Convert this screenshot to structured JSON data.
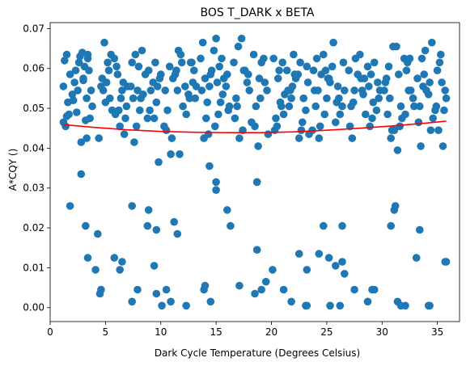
{
  "chart_data": {
    "type": "scatter",
    "title": "BOS T_DARK x BETA",
    "xlabel": "Dark Cycle Temperature (Degrees Celsius)",
    "ylabel": "A*CQY ()",
    "xlim": [
      0,
      37
    ],
    "ylim": [
      -0.0035,
      0.0715
    ],
    "x_ticks": [
      0,
      5,
      10,
      15,
      20,
      25,
      30,
      35
    ],
    "y_ticks": [
      0.0,
      0.01,
      0.02,
      0.03,
      0.04,
      0.05,
      0.06,
      0.07
    ],
    "y_tick_labels": [
      "0.00",
      "0.01",
      "0.02",
      "0.03",
      "0.04",
      "0.05",
      "0.06",
      "0.07"
    ],
    "grid": false,
    "colors": {
      "points": "#1f77b4",
      "fit": "#ff0000"
    },
    "series": [
      {
        "type": "scatter",
        "x": [
          1.2,
          1.5,
          2.1,
          2.6,
          3.0,
          3.4,
          3.7,
          1.3,
          1.8,
          2.4,
          2.9,
          3.3,
          1.4,
          2.2,
          3.1,
          3.6,
          1.6,
          2.7,
          3.5,
          1.2,
          2.0,
          3.0,
          3.4,
          1.5,
          2.5,
          3.8,
          2.3,
          3.2,
          2.8,
          1.7,
          4.6,
          5.2,
          5.6,
          6.1,
          6.5,
          4.9,
          5.4,
          6.0,
          6.8,
          4.7,
          5.8,
          6.3,
          5.0,
          6.6,
          5.5,
          4.8,
          6.2,
          5.3,
          6.9,
          4.4,
          5.9,
          5.1,
          6.4,
          7.0,
          6.7,
          7.3,
          7.7,
          8.1,
          8.6,
          9.1,
          9.5,
          9.9,
          7.5,
          8.0,
          8.8,
          9.3,
          10.0,
          7.8,
          8.4,
          9.0,
          9.7,
          7.4,
          8.3,
          9.6,
          7.9,
          8.9,
          9.4,
          8.2,
          7.6,
          9.8,
          10.4,
          10.8,
          11.3,
          11.8,
          12.2,
          12.7,
          13.1,
          10.6,
          11.1,
          11.6,
          12.5,
          13.0,
          10.3,
          11.5,
          12.0,
          12.9,
          11.0,
          12.3,
          11.9,
          12.6,
          10.9,
          11.4,
          13.2,
          10.5,
          12.8,
          13.6,
          14.0,
          14.4,
          14.8,
          15.3,
          15.6,
          16.0,
          13.8,
          14.2,
          14.6,
          15.1,
          15.5,
          16.2,
          13.7,
          14.5,
          15.0,
          15.9,
          14.1,
          15.4,
          16.1,
          13.9,
          14.9,
          15.7,
          14.3,
          15.2,
          16.6,
          17.0,
          17.5,
          18.0,
          18.4,
          18.9,
          19.3,
          16.8,
          17.3,
          17.8,
          18.6,
          19.1,
          19.6,
          16.7,
          17.6,
          18.2,
          19.0,
          17.1,
          18.5,
          19.4,
          16.9,
          17.9,
          18.8,
          17.4,
          19.7,
          20.2,
          20.6,
          21.0,
          21.5,
          22.0,
          22.4,
          22.9,
          23.3,
          20.4,
          20.9,
          21.4,
          21.9,
          22.6,
          23.1,
          20.3,
          21.2,
          22.2,
          22.8,
          20.8,
          21.7,
          22.5,
          23.2,
          20.5,
          21.1,
          21.8,
          22.1,
          23.4,
          20.7,
          21.6,
          22.7,
          23.8,
          24.2,
          24.7,
          25.1,
          25.6,
          26.0,
          26.5,
          24.0,
          24.5,
          25.0,
          25.5,
          26.2,
          23.9,
          24.4,
          25.3,
          26.4,
          24.1,
          24.9,
          25.8,
          26.6,
          24.3,
          25.2,
          25.9,
          23.7,
          24.8,
          26.1,
          27.0,
          27.5,
          28.0,
          28.4,
          28.8,
          29.3,
          29.7,
          27.2,
          27.8,
          28.2,
          28.7,
          29.1,
          29.6,
          27.1,
          27.6,
          28.3,
          29.0,
          29.5,
          27.4,
          28.1,
          28.9,
          29.8,
          27.3,
          28.5,
          29.2,
          30.2,
          30.6,
          31.0,
          31.5,
          32.0,
          32.4,
          32.9,
          30.4,
          30.8,
          31.3,
          31.8,
          32.3,
          32.8,
          30.3,
          31.1,
          31.7,
          32.6,
          30.5,
          31.4,
          32.2,
          30.9,
          31.6,
          32.5,
          30.7,
          32.1,
          33.2,
          33.6,
          34.0,
          34.5,
          35.0,
          35.4,
          35.8,
          33.4,
          33.9,
          34.3,
          34.8,
          35.2,
          35.7,
          33.3,
          33.8,
          34.6,
          35.3,
          33.5,
          34.2,
          35.1,
          35.6,
          33.7,
          34.4,
          35.5,
          34.9,
          2.8,
          3.3,
          1.8,
          3.2,
          3.4,
          4.3,
          4.5,
          4.1,
          4.6,
          5.8,
          6.3,
          6.5,
          7.4,
          7.4,
          7.9,
          8.9,
          8.8,
          9.6,
          9.6,
          9.4,
          10.1,
          10.5,
          10.9,
          11.2,
          11.5,
          11.7,
          12.3,
          14.0,
          13.9,
          14.5,
          14.4,
          16.0,
          16.3,
          17.1,
          18.5,
          18.7,
          18.7,
          19.1,
          19.5,
          20.1,
          21.1,
          21.8,
          23.2,
          23.1,
          23.2,
          24.3,
          24.7,
          25.2,
          25.3,
          26.2,
          26.4,
          26.6,
          27.5,
          28.7,
          29.1,
          29.3,
          30.8,
          31.1,
          31.2,
          31.4,
          31.7,
          32.1,
          33.1,
          33.4,
          34.3,
          34.2,
          35.8,
          35.7,
          15.0,
          15.0,
          18.7,
          22.5,
          25.8,
          26.4
        ],
        "y": [
          0.0555,
          0.048,
          0.052,
          0.0615,
          0.057,
          0.0635,
          0.0545,
          0.062,
          0.0585,
          0.049,
          0.064,
          0.0525,
          0.0455,
          0.0565,
          0.0605,
          0.0475,
          0.0515,
          0.063,
          0.0595,
          0.0465,
          0.0535,
          0.0575,
          0.0625,
          0.0635,
          0.0545,
          0.0505,
          0.0595,
          0.047,
          0.0415,
          0.0485,
          0.0555,
          0.0615,
          0.0495,
          0.0585,
          0.0545,
          0.0665,
          0.0525,
          0.0605,
          0.0475,
          0.0575,
          0.0625,
          0.0455,
          0.0515,
          0.0565,
          0.0635,
          0.0545,
          0.0495,
          0.0595,
          0.0505,
          0.0425,
          0.0485,
          0.0565,
          0.0525,
          0.0555,
          0.0435,
          0.0555,
          0.0635,
          0.0495,
          0.0585,
          0.0545,
          0.0615,
          0.0575,
          0.0525,
          0.0605,
          0.0475,
          0.0565,
          0.0585,
          0.0455,
          0.0535,
          0.0495,
          0.0555,
          0.0615,
          0.0645,
          0.0515,
          0.0545,
          0.0595,
          0.0475,
          0.0525,
          0.0415,
          0.0365,
          0.0545,
          0.0605,
          0.0585,
          0.0635,
          0.0555,
          0.0615,
          0.0525,
          0.0495,
          0.0575,
          0.0645,
          0.0535,
          0.0595,
          0.0455,
          0.0545,
          0.0505,
          0.0565,
          0.0425,
          0.0485,
          0.0615,
          0.0525,
          0.0385,
          0.0595,
          0.0555,
          0.0445,
          0.0615,
          0.0625,
          0.0575,
          0.0555,
          0.0645,
          0.0605,
          0.0535,
          0.0585,
          0.0665,
          0.0515,
          0.0595,
          0.0565,
          0.0625,
          0.0505,
          0.0545,
          0.0585,
          0.0675,
          0.0555,
          0.0475,
          0.0515,
          0.0495,
          0.0425,
          0.0455,
          0.0575,
          0.0435,
          0.0485,
          0.0615,
          0.0655,
          0.0595,
          0.0545,
          0.0635,
          0.0575,
          0.0625,
          0.0525,
          0.0675,
          0.0565,
          0.0505,
          0.0615,
          0.0545,
          0.0475,
          0.0595,
          0.0465,
          0.0525,
          0.0425,
          0.0455,
          0.0565,
          0.0505,
          0.0585,
          0.0405,
          0.0445,
          0.0435,
          0.0625,
          0.0575,
          0.0615,
          0.0545,
          0.0635,
          0.0585,
          0.0525,
          0.0565,
          0.0475,
          0.0505,
          0.0595,
          0.0555,
          0.0615,
          0.0495,
          0.0445,
          0.0535,
          0.0575,
          0.0465,
          0.0515,
          0.0545,
          0.0425,
          0.0605,
          0.0455,
          0.0485,
          0.0525,
          0.0585,
          0.0435,
          0.0595,
          0.0505,
          0.0445,
          0.0595,
          0.0545,
          0.0635,
          0.0575,
          0.0665,
          0.0555,
          0.0615,
          0.0505,
          0.0585,
          0.0525,
          0.0605,
          0.0485,
          0.0545,
          0.0455,
          0.0565,
          0.0505,
          0.0625,
          0.0595,
          0.0465,
          0.0545,
          0.0425,
          0.0575,
          0.0515,
          0.0445,
          0.0485,
          0.0525,
          0.0595,
          0.0545,
          0.0635,
          0.0575,
          0.0555,
          0.0615,
          0.0525,
          0.0505,
          0.0585,
          0.0545,
          0.0605,
          0.0475,
          0.0565,
          0.0455,
          0.0625,
          0.0535,
          0.0585,
          0.0495,
          0.0515,
          0.0575,
          0.0455,
          0.0545,
          0.0425,
          0.0485,
          0.0515,
          0.0545,
          0.0605,
          0.0655,
          0.0585,
          0.0625,
          0.0545,
          0.0505,
          0.0575,
          0.0425,
          0.0655,
          0.0475,
          0.0615,
          0.0525,
          0.0565,
          0.0445,
          0.0505,
          0.0545,
          0.0485,
          0.0395,
          0.0595,
          0.0445,
          0.0455,
          0.0625,
          0.0525,
          0.0485,
          0.0575,
          0.0625,
          0.0545,
          0.0665,
          0.0595,
          0.0565,
          0.0525,
          0.0505,
          0.0645,
          0.0565,
          0.0495,
          0.0615,
          0.0545,
          0.0465,
          0.0585,
          0.0475,
          0.0635,
          0.0405,
          0.0535,
          0.0445,
          0.0495,
          0.0555,
          0.0445,
          0.0405,
          0.0505,
          0.0335,
          0.0425,
          0.0255,
          0.0205,
          0.0125,
          0.0185,
          0.0035,
          0.0095,
          0.0045,
          0.0125,
          0.0095,
          0.0115,
          0.0015,
          0.0255,
          0.0045,
          0.0245,
          0.0205,
          0.0035,
          0.0195,
          0.0105,
          0.0005,
          0.0045,
          0.0015,
          0.0215,
          0.0185,
          0.0385,
          0.0005,
          0.0055,
          0.0045,
          0.0015,
          0.0355,
          0.0245,
          0.0205,
          0.0055,
          0.0035,
          0.0315,
          0.0145,
          0.0045,
          0.0065,
          0.0095,
          0.0045,
          0.0015,
          0.0095,
          0.0005,
          0.0005,
          0.0135,
          0.0205,
          0.0125,
          0.0005,
          0.0005,
          0.0205,
          0.0085,
          0.0045,
          0.0015,
          0.0045,
          0.0045,
          0.0205,
          0.0245,
          0.0255,
          0.0015,
          0.0005,
          0.0005,
          0.0125,
          0.0195,
          0.0005,
          0.0005,
          0.0115,
          0.0115,
          0.0295,
          0.0315,
          0.0315,
          0.0135,
          0.0105,
          0.0115
        ]
      },
      {
        "type": "line",
        "name": "fit",
        "x": [
          1.2,
          4,
          7,
          10,
          13,
          16,
          19,
          22,
          25,
          28,
          31,
          34,
          35.8
        ],
        "y": [
          0.0459,
          0.0452,
          0.0446,
          0.0442,
          0.044,
          0.0439,
          0.0439,
          0.0441,
          0.0445,
          0.045,
          0.0456,
          0.0463,
          0.0468
        ]
      }
    ]
  }
}
